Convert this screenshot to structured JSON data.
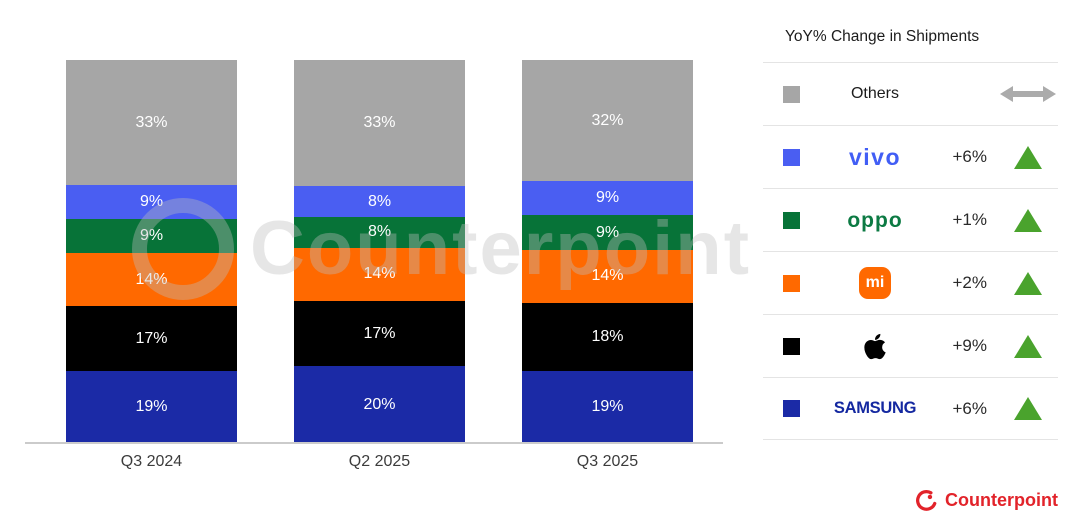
{
  "chart_data": {
    "type": "bar",
    "stacked": true,
    "categories": [
      "Q3 2024",
      "Q2 2025",
      "Q3 2025"
    ],
    "series": [
      {
        "name": "Others",
        "color": "#a6a6a6",
        "values": [
          33,
          33,
          32
        ]
      },
      {
        "name": "vivo",
        "color": "#4a5ef2",
        "values": [
          9,
          8,
          9
        ]
      },
      {
        "name": "OPPO",
        "color": "#077338",
        "values": [
          9,
          8,
          9
        ]
      },
      {
        "name": "Xiaomi",
        "color": "#ff6900",
        "values": [
          14,
          14,
          14
        ]
      },
      {
        "name": "Apple",
        "color": "#000000",
        "values": [
          17,
          17,
          18
        ]
      },
      {
        "name": "Samsung",
        "color": "#1b2aa6",
        "values": [
          19,
          20,
          19
        ]
      }
    ],
    "unit": "%",
    "ylim": [
      0,
      100
    ],
    "grid": false,
    "legend_position": "right",
    "stack_order_top_to_bottom": [
      "Others",
      "vivo",
      "OPPO",
      "Xiaomi",
      "Apple",
      "Samsung"
    ]
  },
  "legend": {
    "title": "YoY% Change in Shipments",
    "rows": [
      {
        "brand": "Others",
        "swatch": "#a6a6a6",
        "label": "Others",
        "change": "",
        "trend": "flat"
      },
      {
        "brand": "vivo",
        "swatch": "#4a5ef2",
        "logo_text": "vivo",
        "logo_color": "#415ef5",
        "change": "+6%",
        "trend": "up"
      },
      {
        "brand": "OPPO",
        "swatch": "#077338",
        "logo_text": "oppo",
        "logo_color": "#0c7a43",
        "change": "+1%",
        "trend": "up"
      },
      {
        "brand": "Xiaomi",
        "swatch": "#ff6900",
        "logo_text": "mi",
        "logo_color": "#ffffff",
        "change": "+2%",
        "trend": "up"
      },
      {
        "brand": "Apple",
        "swatch": "#000000",
        "change": "+9%",
        "trend": "up"
      },
      {
        "brand": "Samsung",
        "swatch": "#1b2aa6",
        "logo_text": "SAMSUNG",
        "logo_color": "#1428a0",
        "change": "+6%",
        "trend": "up"
      }
    ]
  },
  "watermark": {
    "text": "Counterpoint"
  },
  "footer": {
    "brand": "Counterpoint"
  },
  "colors": {
    "trend_up": "#4aa32d",
    "trend_flat": "#ababab",
    "separator": "#e4e4e4",
    "axis_line": "#cbcbcb",
    "brand_red": "#e2232a",
    "bar_label": "#ffffff",
    "category_label": "#3c3c3c"
  }
}
